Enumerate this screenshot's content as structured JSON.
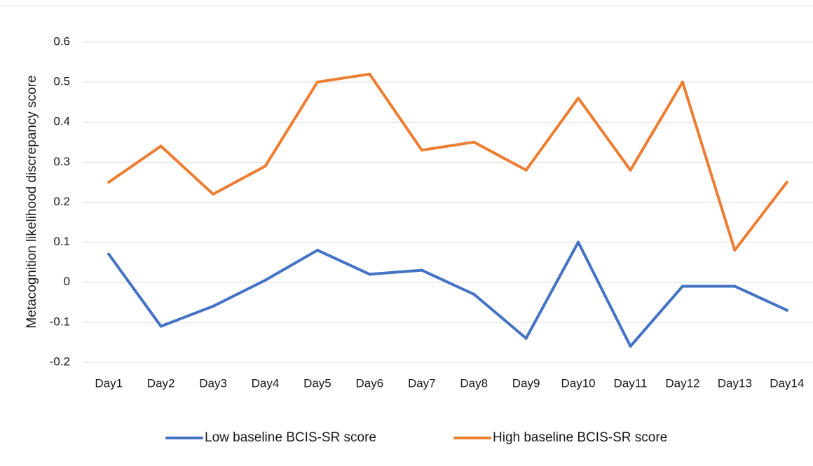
{
  "chart_data": {
    "type": "line",
    "title": "",
    "xlabel": "",
    "ylabel": "Metacognition likelihood discrepancy score",
    "categories": [
      "Day1",
      "Day2",
      "Day3",
      "Day4",
      "Day5",
      "Day6",
      "Day7",
      "Day8",
      "Day9",
      "Day10",
      "Day11",
      "Day12",
      "Day13",
      "Day14"
    ],
    "ylim": [
      -0.2,
      0.6
    ],
    "yticks": [
      0.6,
      0.5,
      0.4,
      0.3,
      0.2,
      0.1,
      0,
      -0.1,
      -0.2
    ],
    "ytick_labels": [
      "0.6",
      "0.5",
      "0.4",
      "0.3",
      "0.2",
      "0.1",
      "0",
      "-0.1",
      "-0.2"
    ],
    "grid": true,
    "legend_position": "bottom",
    "series": [
      {
        "name": "Low baseline BCIS-SR score",
        "color": "#4472C4",
        "values": [
          0.07,
          -0.11,
          -0.06,
          0.005,
          0.08,
          0.02,
          0.03,
          -0.03,
          -0.14,
          0.1,
          -0.16,
          -0.01,
          -0.01,
          -0.07
        ]
      },
      {
        "name": "High baseline BCIS-SR score",
        "color": "#ED7D31",
        "values": [
          0.25,
          0.34,
          0.22,
          0.29,
          0.5,
          0.52,
          0.33,
          0.35,
          0.28,
          0.46,
          0.28,
          0.5,
          0.08,
          0.25
        ]
      }
    ]
  }
}
